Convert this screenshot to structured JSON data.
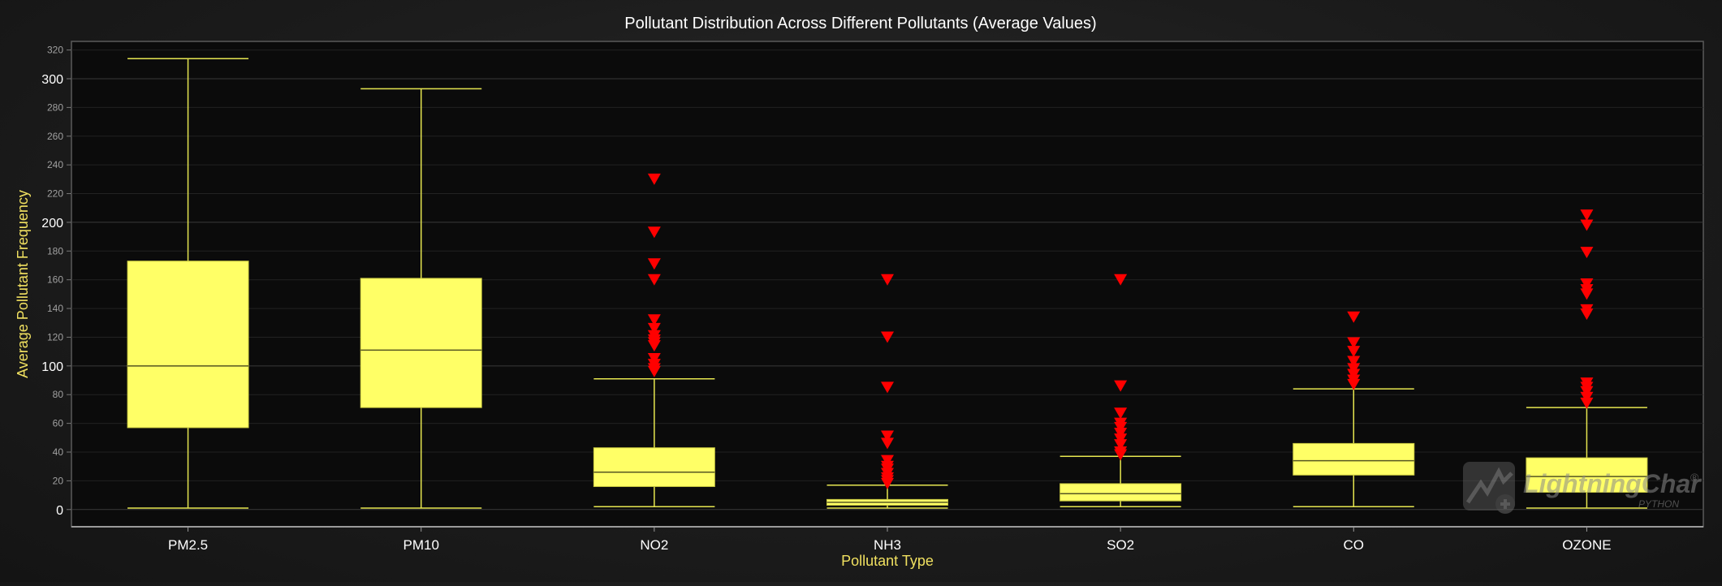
{
  "chart_data": {
    "type": "box",
    "title": "Pollutant Distribution Across Different Pollutants (Average Values)",
    "xlabel": "Pollutant Type",
    "ylabel": "Average Pollutant Frequency",
    "ylim": [
      -12,
      326
    ],
    "y_ticks": [
      0,
      20,
      40,
      60,
      80,
      100,
      120,
      140,
      160,
      180,
      200,
      220,
      240,
      260,
      280,
      300,
      320
    ],
    "y_major_ticks": [
      0,
      100,
      200,
      300
    ],
    "grid": true,
    "colors": {
      "box_fill": "#ffff66",
      "box_line": "#c8c840",
      "whisker": "#e6e650",
      "median": "#555522",
      "outlier": "#ff0000",
      "plot_bg": "#0b0b0b",
      "text": "#ffffff",
      "axis_title": "#f0e060"
    },
    "categories": [
      "PM2.5",
      "PM10",
      "NO2",
      "NH3",
      "SO2",
      "CO",
      "OZONE"
    ],
    "boxes": [
      {
        "category": "PM2.5",
        "min": 1,
        "q1": 57,
        "median": 100,
        "q3": 173,
        "max": 314,
        "outliers": []
      },
      {
        "category": "PM10",
        "min": 1,
        "q1": 71,
        "median": 111,
        "q3": 161,
        "max": 293,
        "outliers": []
      },
      {
        "category": "NO2",
        "min": 2,
        "q1": 16,
        "median": 26,
        "q3": 43,
        "max": 91,
        "outliers": [
          96,
          98,
          101,
          105,
          114,
          116,
          118,
          121,
          126,
          132,
          160,
          171,
          193,
          230
        ]
      },
      {
        "category": "NH3",
        "min": 1,
        "q1": 3,
        "median": 5,
        "q3": 7,
        "max": 17,
        "outliers": [
          18,
          20,
          22,
          25,
          28,
          30,
          34,
          46,
          51,
          85,
          120,
          160
        ]
      },
      {
        "category": "SO2",
        "min": 2,
        "q1": 6,
        "median": 11,
        "q3": 18,
        "max": 37,
        "outliers": [
          38,
          40,
          45,
          49,
          53,
          57,
          60,
          67,
          86,
          160
        ]
      },
      {
        "category": "CO",
        "min": 2,
        "q1": 24,
        "median": 34,
        "q3": 46,
        "max": 84,
        "outliers": [
          87,
          90,
          94,
          98,
          103,
          110,
          116,
          134
        ]
      },
      {
        "category": "OZONE",
        "min": 1,
        "q1": 12,
        "median": 23,
        "q3": 36,
        "max": 71,
        "outliers": [
          74,
          78,
          82,
          85,
          88,
          136,
          139,
          150,
          153,
          157,
          179,
          198,
          205
        ]
      }
    ]
  },
  "watermark": {
    "brand": "LightningChart",
    "reg": "®",
    "sub": "PYTHON"
  }
}
